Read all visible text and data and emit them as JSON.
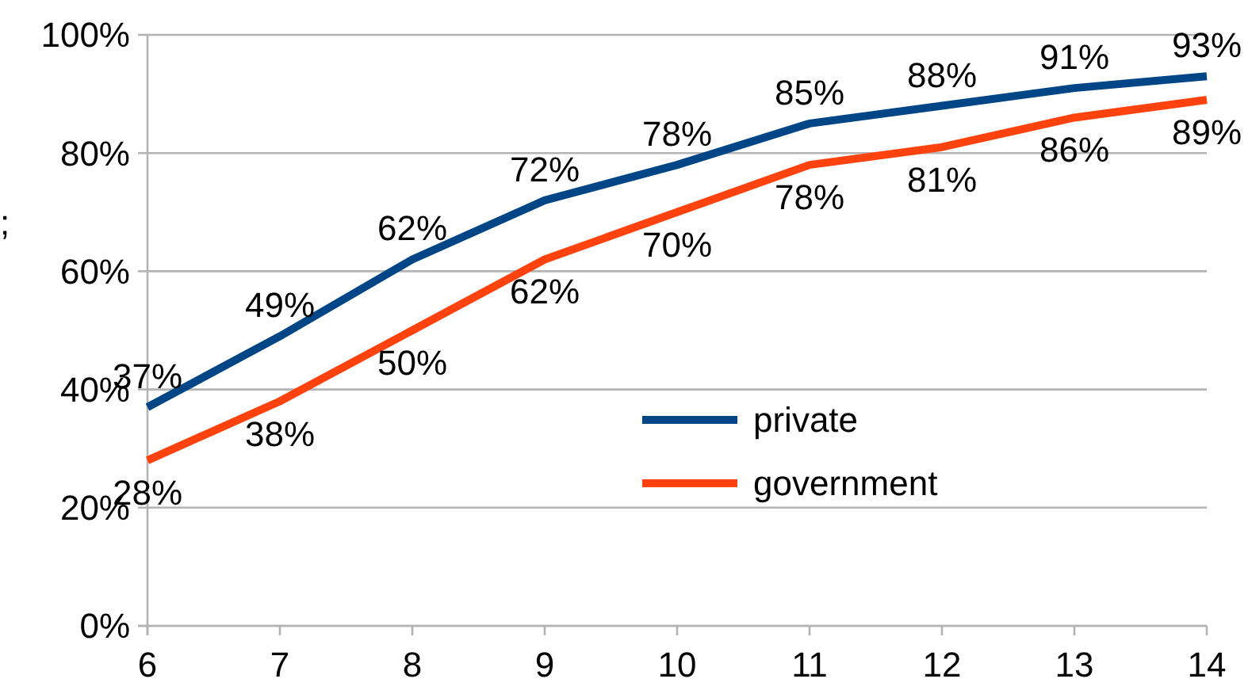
{
  "chart_data": {
    "type": "line",
    "ylabel": ";",
    "x": [
      6,
      7,
      8,
      9,
      10,
      11,
      12,
      13,
      14
    ],
    "xlim": [
      6,
      14
    ],
    "xticks": [
      6,
      7,
      8,
      9,
      10,
      11,
      12,
      13,
      14
    ],
    "ylim": [
      0,
      100
    ],
    "yticks": [
      {
        "value": 0,
        "label": "0%"
      },
      {
        "value": 20,
        "label": "20%"
      },
      {
        "value": 40,
        "label": "40%"
      },
      {
        "value": 60,
        "label": "60%"
      },
      {
        "value": 80,
        "label": "80%"
      },
      {
        "value": 100,
        "label": "100%"
      }
    ],
    "grid": "y",
    "legend": "right",
    "marker": "none",
    "line_style": "solid",
    "series": [
      {
        "name": "private",
        "color": "#004586",
        "values": [
          37,
          49,
          62,
          72,
          78,
          85,
          88,
          91,
          93
        ],
        "value_labels": [
          "37%",
          "49%",
          "62%",
          "72%",
          "78%",
          "85%",
          "88%",
          "91%",
          "93%"
        ]
      },
      {
        "name": "government",
        "color": "#ff420e",
        "values": [
          28,
          38,
          50,
          62,
          70,
          78,
          81,
          86,
          89
        ],
        "value_labels": [
          "28%",
          "38%",
          "50%",
          "62%",
          "70%",
          "78%",
          "81%",
          "86%",
          "89%"
        ]
      }
    ]
  }
}
